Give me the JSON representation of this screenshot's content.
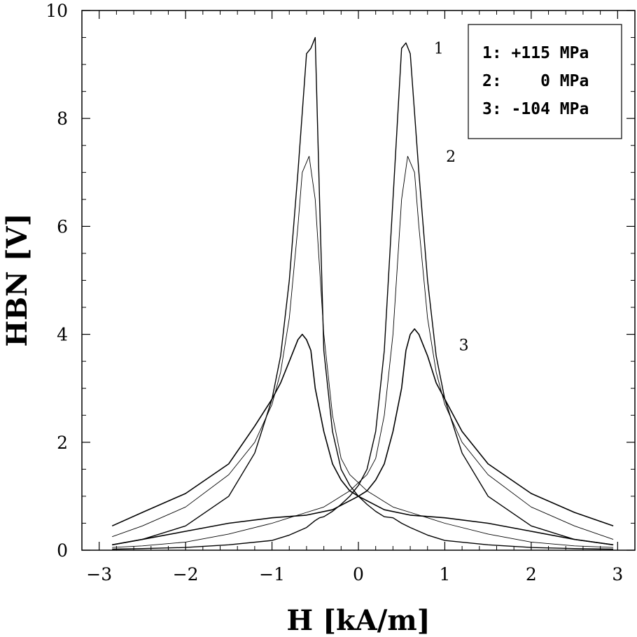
{
  "chart_data": {
    "type": "line",
    "xlabel": "H  [kA/m]",
    "ylabel": "HBN  [V]",
    "xlim": [
      -3.2,
      3.2
    ],
    "ylim": [
      0,
      10
    ],
    "x_ticks": [
      -3,
      -2,
      -1,
      0,
      1,
      2,
      3
    ],
    "y_ticks": [
      0,
      2,
      4,
      6,
      8,
      10
    ],
    "grid": false,
    "legend_position": "top-right",
    "legend": [
      "1: +115 MPa",
      "2:    0 MPa",
      "3: -104 MPa"
    ],
    "curve_labels": [
      {
        "text": "1",
        "x": 0.93,
        "y": 9.2
      },
      {
        "text": "2",
        "x": 1.07,
        "y": 7.2
      },
      {
        "text": "3",
        "x": 1.22,
        "y": 3.7
      }
    ],
    "series": [
      {
        "name": "1: +115 MPa",
        "branch_up": {
          "x": [
            -2.85,
            -2.5,
            -2.0,
            -1.5,
            -1.0,
            -0.8,
            -0.6,
            -0.5,
            -0.45,
            -0.4,
            -0.3,
            -0.2,
            -0.1,
            0.0,
            0.1,
            0.2,
            0.3,
            0.4,
            0.5,
            0.55,
            0.6,
            0.7,
            0.8,
            0.9,
            1.0,
            1.2,
            1.5,
            2.0,
            2.5,
            2.95
          ],
          "y": [
            0.02,
            0.03,
            0.05,
            0.1,
            0.18,
            0.28,
            0.42,
            0.55,
            0.6,
            0.62,
            0.72,
            0.85,
            1.0,
            1.2,
            1.5,
            2.2,
            3.7,
            6.5,
            9.3,
            9.4,
            9.2,
            7.0,
            5.0,
            3.6,
            2.8,
            1.8,
            1.0,
            0.45,
            0.2,
            0.1
          ]
        },
        "branch_down": {
          "x": [
            2.95,
            2.5,
            2.0,
            1.5,
            1.0,
            0.8,
            0.6,
            0.5,
            0.4,
            0.3,
            0.2,
            0.1,
            0.0,
            -0.1,
            -0.2,
            -0.3,
            -0.4,
            -0.45,
            -0.5,
            -0.55,
            -0.6,
            -0.7,
            -0.8,
            -0.9,
            -1.0,
            -1.2,
            -1.5,
            -2.0,
            -2.5,
            -2.85
          ],
          "y": [
            0.02,
            0.03,
            0.05,
            0.1,
            0.18,
            0.28,
            0.42,
            0.5,
            0.6,
            0.62,
            0.72,
            0.85,
            1.0,
            1.2,
            1.5,
            2.2,
            3.7,
            6.5,
            9.5,
            9.3,
            9.2,
            7.0,
            5.0,
            3.6,
            2.8,
            1.8,
            1.0,
            0.45,
            0.2,
            0.1
          ]
        }
      },
      {
        "name": "2: 0 MPa",
        "branch_up": {
          "x": [
            -2.85,
            -2.5,
            -2.0,
            -1.5,
            -1.0,
            -0.8,
            -0.6,
            -0.5,
            -0.4,
            -0.3,
            -0.2,
            -0.1,
            0.0,
            0.1,
            0.2,
            0.3,
            0.4,
            0.5,
            0.57,
            0.65,
            0.7,
            0.8,
            0.9,
            1.0,
            1.2,
            1.5,
            2.0,
            2.5,
            2.95
          ],
          "y": [
            0.05,
            0.08,
            0.15,
            0.3,
            0.5,
            0.6,
            0.7,
            0.75,
            0.8,
            0.9,
            1.0,
            1.1,
            1.25,
            1.4,
            1.7,
            2.5,
            4.0,
            6.5,
            7.3,
            7.0,
            6.0,
            4.3,
            3.3,
            2.7,
            2.0,
            1.4,
            0.8,
            0.45,
            0.2
          ]
        },
        "branch_down": {
          "x": [
            2.95,
            2.5,
            2.0,
            1.5,
            1.0,
            0.8,
            0.6,
            0.5,
            0.4,
            0.3,
            0.2,
            0.1,
            0.0,
            -0.1,
            -0.2,
            -0.3,
            -0.4,
            -0.5,
            -0.57,
            -0.65,
            -0.7,
            -0.8,
            -0.9,
            -1.0,
            -1.2,
            -1.5,
            -2.0,
            -2.5,
            -2.85
          ],
          "y": [
            0.05,
            0.08,
            0.15,
            0.3,
            0.5,
            0.6,
            0.7,
            0.75,
            0.8,
            0.9,
            1.0,
            1.1,
            1.25,
            1.4,
            1.7,
            2.5,
            4.0,
            6.5,
            7.3,
            7.0,
            6.0,
            4.3,
            3.3,
            2.7,
            2.0,
            1.4,
            0.8,
            0.45,
            0.25
          ]
        }
      },
      {
        "name": "3: -104 MPa",
        "branch_up": {
          "x": [
            -2.85,
            -2.5,
            -2.0,
            -1.5,
            -1.0,
            -0.6,
            -0.3,
            0.0,
            0.1,
            0.2,
            0.3,
            0.4,
            0.5,
            0.55,
            0.6,
            0.65,
            0.7,
            0.8,
            0.9,
            1.0,
            1.2,
            1.5,
            2.0,
            2.5,
            2.95
          ],
          "y": [
            0.1,
            0.2,
            0.35,
            0.5,
            0.6,
            0.65,
            0.75,
            1.0,
            1.1,
            1.3,
            1.6,
            2.2,
            3.0,
            3.7,
            4.0,
            4.1,
            4.0,
            3.6,
            3.1,
            2.8,
            2.2,
            1.6,
            1.05,
            0.7,
            0.45
          ]
        },
        "branch_down": {
          "x": [
            2.95,
            2.5,
            2.0,
            1.5,
            1.0,
            0.6,
            0.3,
            0.0,
            -0.1,
            -0.2,
            -0.3,
            -0.4,
            -0.5,
            -0.55,
            -0.6,
            -0.65,
            -0.7,
            -0.8,
            -0.9,
            -1.0,
            -1.2,
            -1.5,
            -2.0,
            -2.5,
            -2.85
          ],
          "y": [
            0.1,
            0.2,
            0.35,
            0.5,
            0.6,
            0.65,
            0.75,
            1.0,
            1.1,
            1.3,
            1.6,
            2.2,
            3.0,
            3.7,
            3.9,
            4.0,
            3.9,
            3.5,
            3.1,
            2.8,
            2.3,
            1.6,
            1.05,
            0.7,
            0.45
          ]
        }
      }
    ]
  }
}
